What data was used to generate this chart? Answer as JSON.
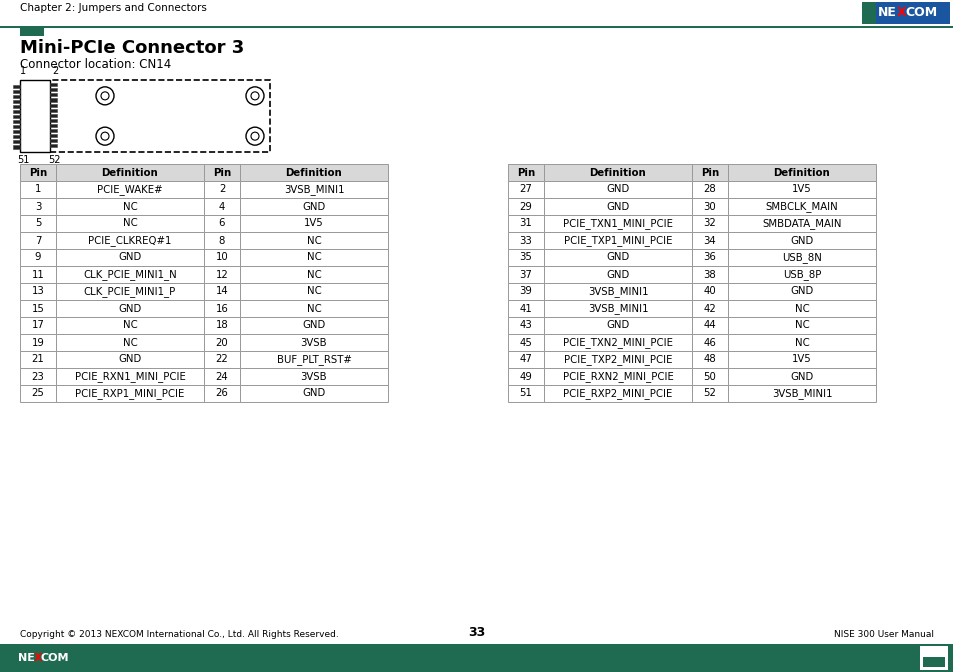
{
  "page_header_text": "Chapter 2: Jumpers and Connectors",
  "title": "Mini-PCIe Connector 3",
  "subtitle": "Connector location: CN14",
  "footer_copyright": "Copyright © 2013 NEXCOM International Co., Ltd. All Rights Reserved.",
  "footer_page": "33",
  "footer_right": "NISE 300 User Manual",
  "green": "#1e6b52",
  "blue": "#1a56a0",
  "light_gray": "#d8d8d8",
  "border_gray": "#999999",
  "table_headers": [
    "Pin",
    "Definition",
    "Pin",
    "Definition"
  ],
  "table1_rows": [
    [
      "1",
      "PCIE_WAKE#",
      "2",
      "3VSB_MINI1"
    ],
    [
      "3",
      "NC",
      "4",
      "GND"
    ],
    [
      "5",
      "NC",
      "6",
      "1V5"
    ],
    [
      "7",
      "PCIE_CLKREQ#1",
      "8",
      "NC"
    ],
    [
      "9",
      "GND",
      "10",
      "NC"
    ],
    [
      "11",
      "CLK_PCIE_MINI1_N",
      "12",
      "NC"
    ],
    [
      "13",
      "CLK_PCIE_MINI1_P",
      "14",
      "NC"
    ],
    [
      "15",
      "GND",
      "16",
      "NC"
    ],
    [
      "17",
      "NC",
      "18",
      "GND"
    ],
    [
      "19",
      "NC",
      "20",
      "3VSB"
    ],
    [
      "21",
      "GND",
      "22",
      "BUF_PLT_RST#"
    ],
    [
      "23",
      "PCIE_RXN1_MINI_PCIE",
      "24",
      "3VSB"
    ],
    [
      "25",
      "PCIE_RXP1_MINI_PCIE",
      "26",
      "GND"
    ]
  ],
  "table2_rows": [
    [
      "27",
      "GND",
      "28",
      "1V5"
    ],
    [
      "29",
      "GND",
      "30",
      "SMBCLK_MAIN"
    ],
    [
      "31",
      "PCIE_TXN1_MINI_PCIE",
      "32",
      "SMBDATA_MAIN"
    ],
    [
      "33",
      "PCIE_TXP1_MINI_PCIE",
      "34",
      "GND"
    ],
    [
      "35",
      "GND",
      "36",
      "USB_8N"
    ],
    [
      "37",
      "GND",
      "38",
      "USB_8P"
    ],
    [
      "39",
      "3VSB_MINI1",
      "40",
      "GND"
    ],
    [
      "41",
      "3VSB_MINI1",
      "42",
      "NC"
    ],
    [
      "43",
      "GND",
      "44",
      "NC"
    ],
    [
      "45",
      "PCIE_TXN2_MINI_PCIE",
      "46",
      "NC"
    ],
    [
      "47",
      "PCIE_TXP2_MINI_PCIE",
      "48",
      "1V5"
    ],
    [
      "49",
      "PCIE_RXN2_MINI_PCIE",
      "50",
      "GND"
    ],
    [
      "51",
      "PCIE_RXP2_MINI_PCIE",
      "52",
      "3VSB_MINI1"
    ]
  ]
}
